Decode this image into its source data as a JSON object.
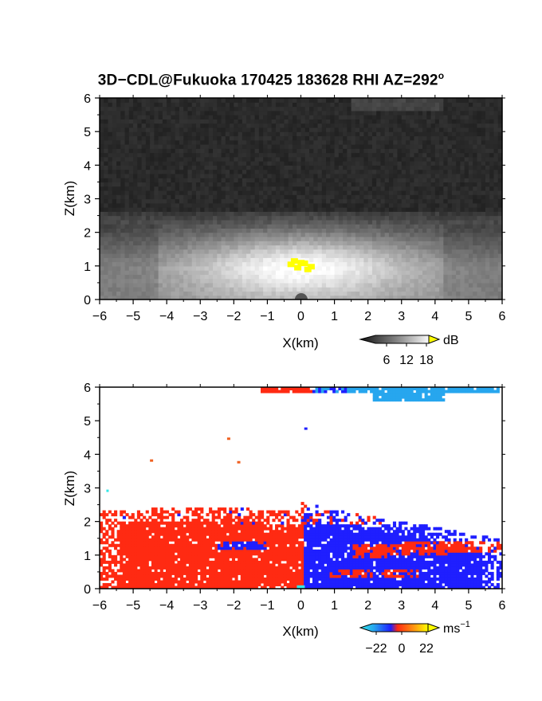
{
  "page": {
    "title": "3D−CDL@Fukuoka 170425 183628 RHI AZ=292",
    "title_superscript": "o"
  },
  "colors": {
    "velocity_toward": "#1f1fff",
    "velocity_away": "#ff2a12",
    "velocity_far_negative": "#27a6ee",
    "velocity_zero_cyan": "#31e7e7",
    "reflectivity_high": "#ffff00",
    "axes": "#000000"
  },
  "chart_data": [
    {
      "type": "heatmap",
      "name": "reflectivity-panel",
      "quantity": "reflectivity",
      "xlabel": "X(km)",
      "ylabel": "Z(km)",
      "xlim": [
        -6,
        6
      ],
      "ylim": [
        0,
        6
      ],
      "xticks": [
        -6,
        -5,
        -4,
        -3,
        -2,
        -1,
        0,
        1,
        2,
        3,
        4,
        5,
        6
      ],
      "yticks": [
        0,
        1,
        2,
        3,
        4,
        5,
        6
      ],
      "colorbar": {
        "unit": "dB",
        "ticks": [
          "6",
          "12",
          "18"
        ],
        "colormap": "grayscale",
        "range": [
          0,
          20
        ]
      },
      "features": [
        {
          "kind": "bright-layer",
          "z_top_km": 2.6,
          "z_bottom_km": 0,
          "peak_x_km": 0,
          "peak_z_km": 1.0
        },
        {
          "kind": "saturated-spot",
          "x_km": [
            -0.3,
            0.4
          ],
          "z_km": [
            0.9,
            1.1
          ],
          "color": "yellow"
        }
      ]
    },
    {
      "type": "heatmap",
      "name": "velocity-panel",
      "quantity": "radial velocity",
      "xlabel": "X(km)",
      "ylabel": "Z(km)",
      "xlim": [
        -6,
        6
      ],
      "ylim": [
        0,
        6
      ],
      "xticks": [
        -6,
        -5,
        -4,
        -3,
        -2,
        -1,
        0,
        1,
        2,
        3,
        4,
        5,
        6
      ],
      "yticks": [
        0,
        1,
        2,
        3,
        4,
        5,
        6
      ],
      "colorbar": {
        "unit": "ms",
        "unit_exponent": "−1",
        "ticks": [
          "−22",
          "0",
          "22"
        ],
        "range": [
          -22,
          22
        ]
      },
      "features": [
        {
          "kind": "positive-region",
          "x_km": [
            -6,
            0
          ],
          "z_km": [
            0,
            2.5
          ],
          "color": "red"
        },
        {
          "kind": "negative-region",
          "x_km": [
            0,
            6
          ],
          "z_km": [
            0,
            2.6
          ],
          "color": "blue"
        },
        {
          "kind": "negative-band",
          "x_km": [
            -2.5,
            -1.0
          ],
          "z_km": [
            1.2,
            1.45
          ],
          "color": "blue"
        },
        {
          "kind": "positive-band",
          "x_km": [
            1.5,
            6
          ],
          "z_km": [
            0.9,
            1.4
          ],
          "color": "red"
        },
        {
          "kind": "top-band",
          "x_km": [
            0.5,
            6
          ],
          "z_km": [
            5.6,
            6.0
          ],
          "color": "light-blue"
        }
      ]
    }
  ]
}
